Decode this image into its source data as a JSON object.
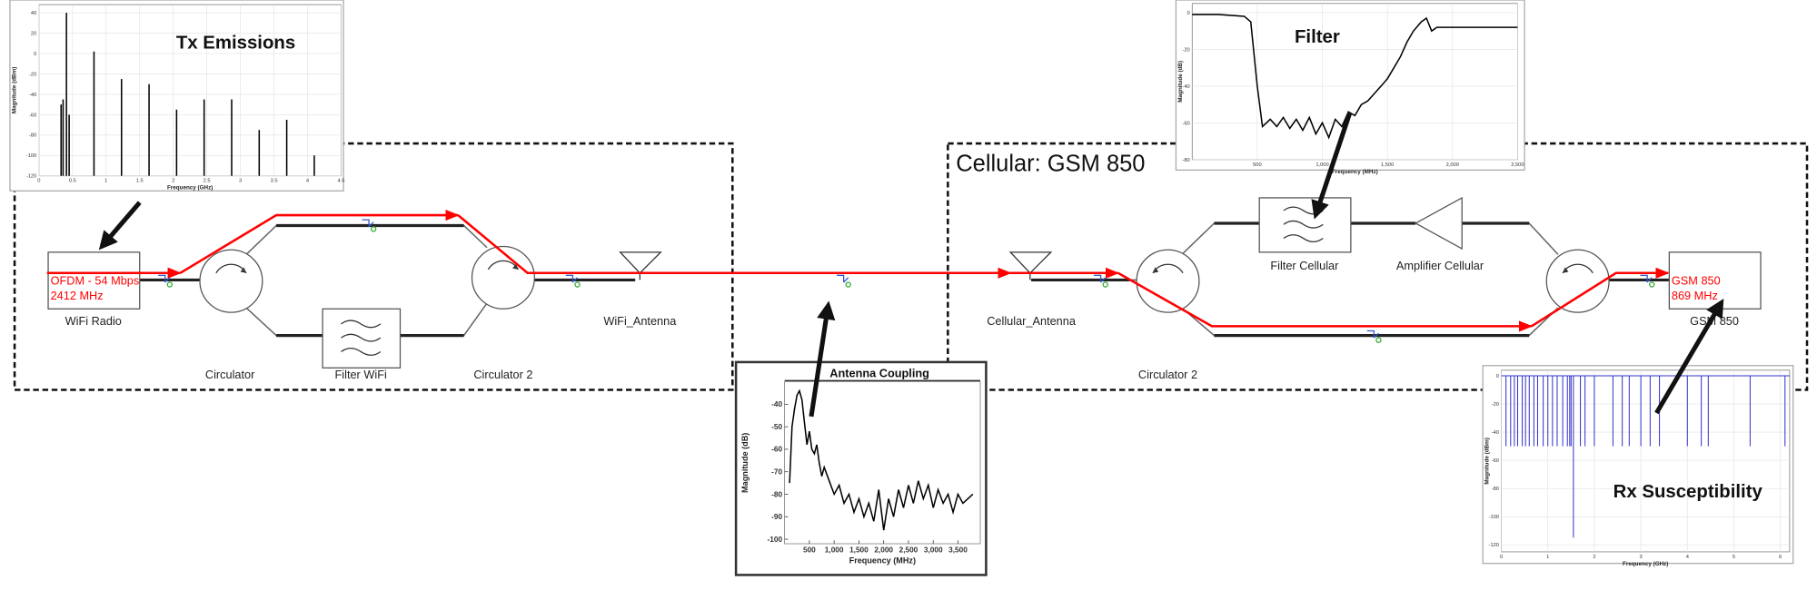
{
  "diagram": {
    "group_label": "Cellular: GSM 850",
    "blocks": [
      {
        "label": "WiFi Radio",
        "signal": [
          "OFDM - 54 Mbps",
          "2412 MHz"
        ]
      },
      {
        "label": "Circulator"
      },
      {
        "label": "Filter WiFi"
      },
      {
        "label": "Circulator 2"
      },
      {
        "label": "WiFi_Antenna"
      },
      {
        "label": "Cellular_Antenna"
      },
      {
        "label": "Circulator 2"
      },
      {
        "label": "Filter Cellular"
      },
      {
        "label": "Amplifier Cellular"
      },
      {
        "label": "GSM 850",
        "signal": [
          "GSM 850",
          "869 MHz"
        ]
      }
    ]
  },
  "charts": [
    {
      "type": "stem",
      "title": "Tx Emissions",
      "x_label": "Frequency (GHz)",
      "y_label": "Magnitude (dBm)",
      "color": "#000000",
      "x": [
        0.33,
        0.36,
        0.41,
        0.45,
        0.82,
        1.23,
        1.64,
        2.05,
        2.46,
        2.87,
        3.28,
        3.69,
        4.1
      ],
      "values": [
        -50,
        -45,
        40,
        -60,
        2,
        -25,
        -30,
        -55,
        -45,
        -45,
        -75,
        -65,
        -100
      ],
      "xlim": [
        0,
        4.5
      ],
      "ylim": [
        -120,
        48
      ],
      "xticks": [
        0,
        0.5,
        1,
        1.5,
        2,
        2.5,
        3,
        3.5,
        4,
        4.5
      ],
      "yticks": [
        -120,
        -100,
        -80,
        -60,
        -40,
        -20,
        0,
        20,
        40
      ],
      "grid": true
    },
    {
      "type": "line",
      "title": "Filter",
      "x_label": "Frequency (MHz)",
      "y_label": "Magnitude (dB)",
      "color": "#000000",
      "x": [
        0,
        200,
        400,
        450,
        500,
        540,
        600,
        650,
        700,
        750,
        800,
        850,
        900,
        950,
        1000,
        1050,
        1100,
        1150,
        1200,
        1250,
        1300,
        1350,
        1400,
        1450,
        1500,
        1550,
        1600,
        1650,
        1700,
        1760,
        1800,
        1840,
        1880,
        1950,
        2500
      ],
      "values": [
        -1,
        -1,
        -2,
        -5,
        -40,
        -62,
        -58,
        -62,
        -57,
        -63,
        -58,
        -64,
        -57,
        -66,
        -60,
        -68,
        -58,
        -62,
        -54,
        -56,
        -50,
        -48,
        -44,
        -40,
        -36,
        -30,
        -24,
        -16,
        -10,
        -5,
        -3,
        -10,
        -8,
        -8,
        -8
      ],
      "xlim": [
        0,
        2500
      ],
      "ylim": [
        -80,
        5
      ],
      "xticks": [
        500,
        {
          "value": 1000,
          "label": "1,000"
        },
        {
          "value": 1500,
          "label": "1,500"
        },
        {
          "value": 2000,
          "label": "2,000"
        },
        {
          "value": 2500,
          "label": "2,500"
        }
      ],
      "yticks": [
        -80,
        -60,
        -40,
        -20,
        0
      ],
      "grid": true
    },
    {
      "type": "line",
      "title": "Antenna Coupling",
      "x_label": "Frequency (MHz)",
      "y_label": "Magnitude (dB)",
      "color": "#000000",
      "x": [
        100,
        150,
        200,
        250,
        300,
        350,
        400,
        450,
        500,
        550,
        600,
        650,
        700,
        750,
        800,
        900,
        1000,
        1100,
        1200,
        1300,
        1400,
        1500,
        1600,
        1700,
        1800,
        1900,
        2000,
        2100,
        2200,
        2300,
        2400,
        2500,
        2600,
        2700,
        2800,
        2900,
        3000,
        3100,
        3200,
        3300,
        3400,
        3500,
        3600,
        3700,
        3800
      ],
      "values": [
        -75,
        -50,
        -42,
        -36,
        -34,
        -38,
        -48,
        -58,
        -52,
        -60,
        -62,
        -58,
        -66,
        -72,
        -68,
        -74,
        -80,
        -76,
        -84,
        -80,
        -88,
        -82,
        -90,
        -84,
        -92,
        -78,
        -96,
        -82,
        -90,
        -78,
        -86,
        -76,
        -84,
        -74,
        -82,
        -76,
        -86,
        -78,
        -84,
        -80,
        -88,
        -80,
        -84,
        -82,
        -80
      ],
      "xlim": [
        0,
        3950
      ],
      "ylim": [
        -102,
        -30
      ],
      "xticks": [
        500,
        {
          "value": 1000,
          "label": "1,000"
        },
        {
          "value": 1500,
          "label": "1,500"
        },
        {
          "value": 2000,
          "label": "2,000"
        },
        {
          "value": 2500,
          "label": "2,500"
        },
        {
          "value": 3000,
          "label": "3,000"
        },
        {
          "value": 3500,
          "label": "3,500"
        }
      ],
      "yticks": [
        -100,
        -90,
        -80,
        -70,
        -60,
        -50,
        -40
      ],
      "grid": false
    },
    {
      "type": "dip",
      "title": "Rx Susceptibility",
      "x_label": "Frequency (GHz)",
      "y_label": "Magnitude (dBm)",
      "color": "#3333cc",
      "x": [
        0.1,
        0.2,
        0.28,
        0.35,
        0.45,
        0.52,
        0.6,
        0.7,
        0.78,
        0.9,
        1.0,
        1.1,
        1.2,
        1.32,
        1.42,
        1.47,
        1.5,
        1.55,
        1.7,
        1.8,
        2.0,
        2.4,
        2.6,
        2.75,
        3.0,
        3.2,
        3.4,
        4.0,
        4.3,
        4.45,
        5.35,
        6.1
      ],
      "values": [
        -50,
        -50,
        -50,
        -50,
        -50,
        -50,
        -50,
        -50,
        -50,
        -50,
        -50,
        -50,
        -50,
        -50,
        -50,
        -50,
        -50,
        -115,
        -50,
        -50,
        -50,
        -50,
        -50,
        -50,
        -50,
        -50,
        -50,
        -50,
        -50,
        -50,
        -50,
        -50
      ],
      "xlim": [
        0,
        6.2
      ],
      "ylim": [
        -125,
        4
      ],
      "xticks": [
        0,
        1,
        2,
        3,
        4,
        5,
        6
      ],
      "yticks": [
        -120,
        -100,
        -80,
        -60,
        -40,
        -20,
        0
      ],
      "grid": true
    }
  ]
}
